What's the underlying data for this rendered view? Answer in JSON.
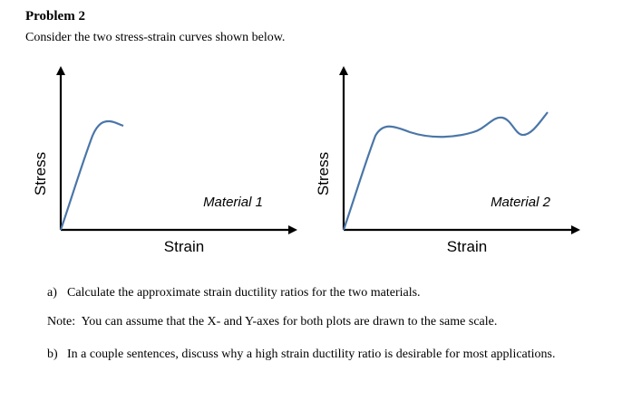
{
  "problem": {
    "title": "Problem 2",
    "intro": "Consider the two stress-strain curves shown below."
  },
  "plots": [
    {
      "ylabel": "Stress",
      "xlabel": "Strain",
      "material": "Material 1",
      "curve_color": "#4a76a8"
    },
    {
      "ylabel": "Stress",
      "xlabel": "Strain",
      "material": "Material 2",
      "curve_color": "#4a76a8"
    }
  ],
  "questions": {
    "a_marker": "a)",
    "a_text": "Calculate the approximate strain ductility ratios for the two materials.",
    "note": "Note:  You can assume that the X- and Y-axes for both plots are drawn to the same scale.",
    "b_marker": "b)",
    "b_text": "In a couple sentences, discuss why a high strain ductility ratio is desirable for most applications."
  }
}
